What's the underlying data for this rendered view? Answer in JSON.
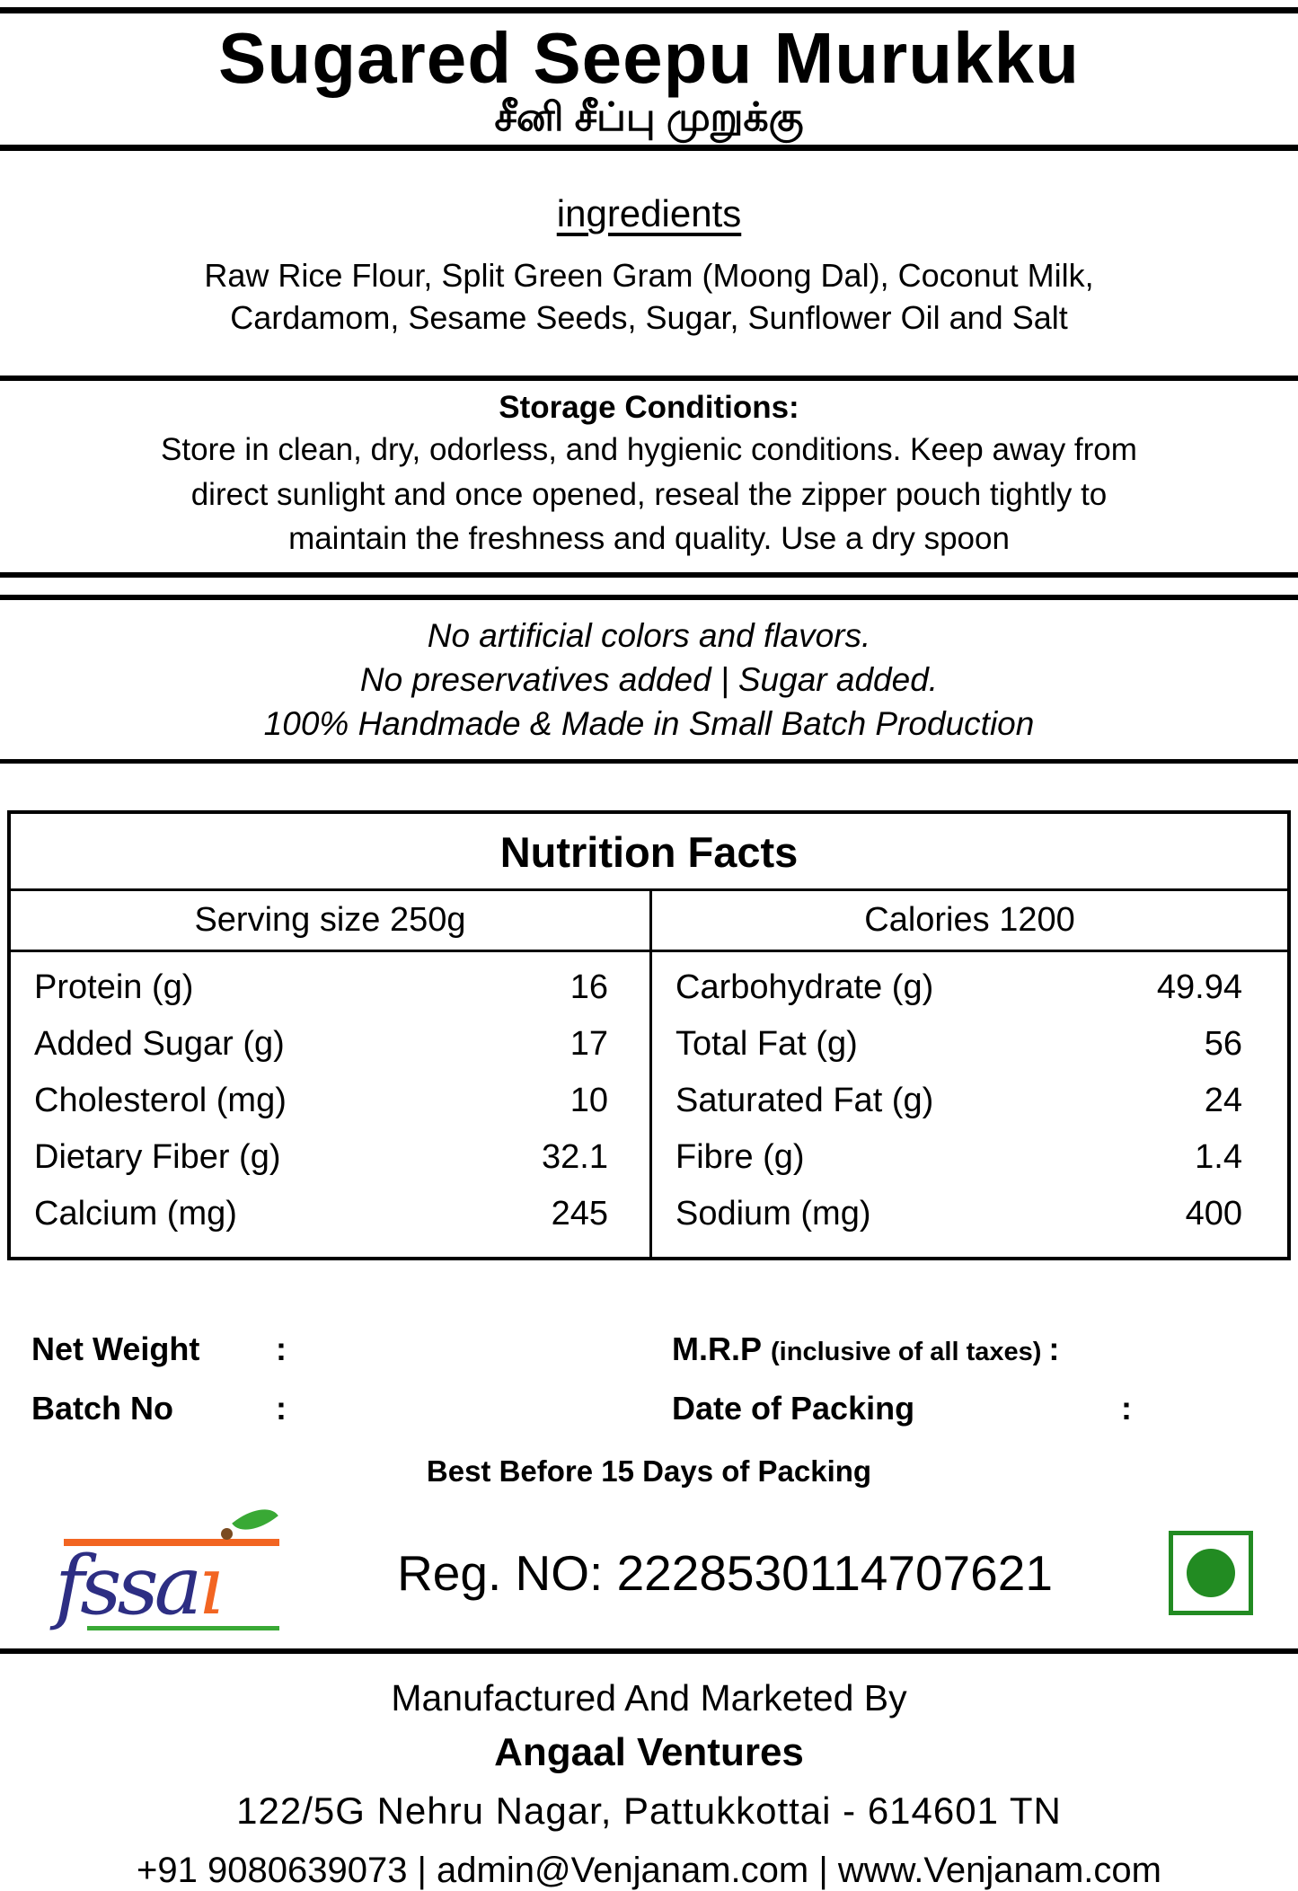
{
  "product": {
    "title": "Sugared Seepu Murukku",
    "title_tamil": "சீனி சீப்பு முறுக்கு"
  },
  "ingredients": {
    "heading": "ingredients",
    "text": "Raw Rice Flour, Split Green Gram (Moong Dal), Coconut Milk, Cardamom, Sesame Seeds, Sugar, Sunflower Oil and Salt"
  },
  "storage": {
    "heading": "Storage Conditions:",
    "text": "Store in clean, dry, odorless, and hygienic conditions. Keep away from direct sunlight and once opened, reseal the zipper pouch tightly to maintain the freshness and quality. Use a dry spoon"
  },
  "claims": {
    "lines": [
      "No artificial colors and flavors.",
      "No preservatives added | Sugar added.",
      "100% Handmade & Made in Small Batch Production"
    ]
  },
  "nutrition": {
    "title": "Nutrition Facts",
    "serving_size": "Serving size 250g",
    "calories": "Calories 1200",
    "left": [
      {
        "label": "Protein (g)",
        "value": "16"
      },
      {
        "label": "Added Sugar (g)",
        "value": "17"
      },
      {
        "label": "Cholesterol (mg)",
        "value": "10"
      },
      {
        "label": "Dietary Fiber (g)",
        "value": "32.1"
      },
      {
        "label": "Calcium (mg)",
        "value": "245"
      }
    ],
    "right": [
      {
        "label": "Carbohydrate (g)",
        "value": "49.94"
      },
      {
        "label": "Total Fat (g)",
        "value": "56"
      },
      {
        "label": "Saturated Fat (g)",
        "value": "24"
      },
      {
        "label": "Fibre (g)",
        "value": "1.4"
      },
      {
        "label": "Sodium (mg)",
        "value": "400"
      }
    ]
  },
  "packing": {
    "net_weight_label": "Net Weight",
    "mrp_label": "M.R.P",
    "mrp_note": "(inclusive of all taxes)",
    "batch_label": "Batch No",
    "date_label": "Date of Packing",
    "colon": ":",
    "best_before": "Best Before 15 Days of Packing"
  },
  "regulatory": {
    "fssai_main": "fssa",
    "fssai_i": "ı",
    "reg_no": "Reg. NO: 2228530114707621"
  },
  "footer": {
    "line1": "Manufactured And Marketed By",
    "company": "Angaal Ventures",
    "address": "122/5G Nehru Nagar, Pattukkottai - 614601 TN",
    "contact": "+91 9080639073 | admin@Venjanam.com | www.Venjanam.com"
  },
  "colors": {
    "fssai_blue": "#2d2e83",
    "fssai_orange": "#f26522",
    "fssai_green": "#39a935",
    "leaf_brown": "#7a4b21",
    "veg_green": "#228b22",
    "text": "#000000",
    "background": "#ffffff"
  }
}
